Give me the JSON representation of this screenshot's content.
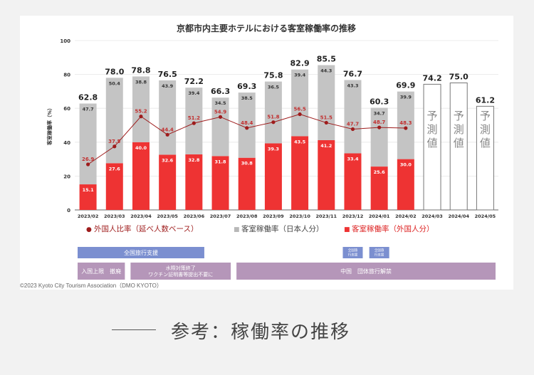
{
  "chart_data": {
    "type": "bar",
    "title": "京都市内主要ホテルにおける客室稼働率の推移",
    "ylabel": "客室稼働率（%）",
    "ylim": [
      0,
      100
    ],
    "yticks": [
      0,
      20,
      40,
      60,
      80,
      100
    ],
    "categories": [
      "2023/02",
      "2023/03",
      "2023/04",
      "2023/05",
      "2023/06",
      "2023/07",
      "2023/08",
      "2023/09",
      "2023/10",
      "2023/11",
      "2023/12",
      "2024/01",
      "2024/02",
      "2024/03",
      "2024/04",
      "2024/05"
    ],
    "totals": [
      "62.8",
      "78.0",
      "78.8",
      "76.5",
      "72.2",
      "66.3",
      "69.3",
      "75.8",
      "82.9",
      "85.5",
      "76.7",
      "60.3",
      "69.9",
      "74.2",
      "75.0",
      "61.2"
    ],
    "series": [
      {
        "name": "客室稼働率（外国人分）",
        "color": "#ee3333",
        "values": [
          15.1,
          27.6,
          40.0,
          32.6,
          32.8,
          31.8,
          30.8,
          39.3,
          43.5,
          41.2,
          33.4,
          25.6,
          30.0,
          null,
          null,
          null
        ]
      },
      {
        "name": "客室稼働率（日本人分）",
        "color": "#c4c4c4",
        "values": [
          47.7,
          50.4,
          38.8,
          43.9,
          39.4,
          34.5,
          38.5,
          36.5,
          39.4,
          44.3,
          43.3,
          34.7,
          39.9,
          null,
          null,
          null
        ]
      },
      {
        "name": "外国人比率（延べ人数ベース）",
        "color": "#9e1c1c",
        "type": "line",
        "values": [
          26.9,
          37.5,
          55.2,
          44.4,
          51.2,
          54.9,
          48.4,
          51.8,
          56.5,
          51.5,
          47.7,
          48.7,
          48.3,
          null,
          null,
          null
        ]
      }
    ],
    "forecast": {
      "label": "予測値",
      "categories": [
        "2024/03",
        "2024/04",
        "2024/05"
      ],
      "values": [
        74.2,
        75.0,
        61.2
      ]
    },
    "legend": {
      "position": "bottom",
      "items": [
        {
          "label": "外国人比率（延べ人数ベース）",
          "marker": "●",
          "color": "#9e1c1c"
        },
        {
          "label": "客室稼働率（日本人分）",
          "marker": "■",
          "color": "#b8b8b8"
        },
        {
          "label": "客室稼働率（外国人分）",
          "marker": "■",
          "color": "#ee3333"
        }
      ]
    },
    "annotations": {
      "blue_bars": [
        {
          "label": "全国旅行支援",
          "from": "2023/02",
          "to": "2023/06"
        },
        {
          "label": "全国旅\n行支援",
          "from": "2023/12",
          "to": "2023/12"
        },
        {
          "label": "全国旅\n行支援",
          "from": "2024/01",
          "to": "2024/01"
        }
      ],
      "purple_bars": [
        {
          "label": "入国上限　撤廃",
          "from": "2023/02",
          "to": "2023/03"
        },
        {
          "label": "水際対策終了\nワクチン証明書等提出不要に",
          "from": "2023/04",
          "to": "2023/07"
        },
        {
          "label": "中国　団体旅行解禁",
          "from": "2023/08",
          "to": "2024/05"
        }
      ]
    }
  },
  "copyright": "©2023 Kyoto City Tourism Association（DMO KYOTO）",
  "caption": "参考：稼働率の推移",
  "colors": {
    "blue": "#7b8fd0",
    "purple": "#b596b9",
    "line": "#9e1c1c",
    "red": "#ee3333",
    "grey": "#c4c4c4"
  }
}
